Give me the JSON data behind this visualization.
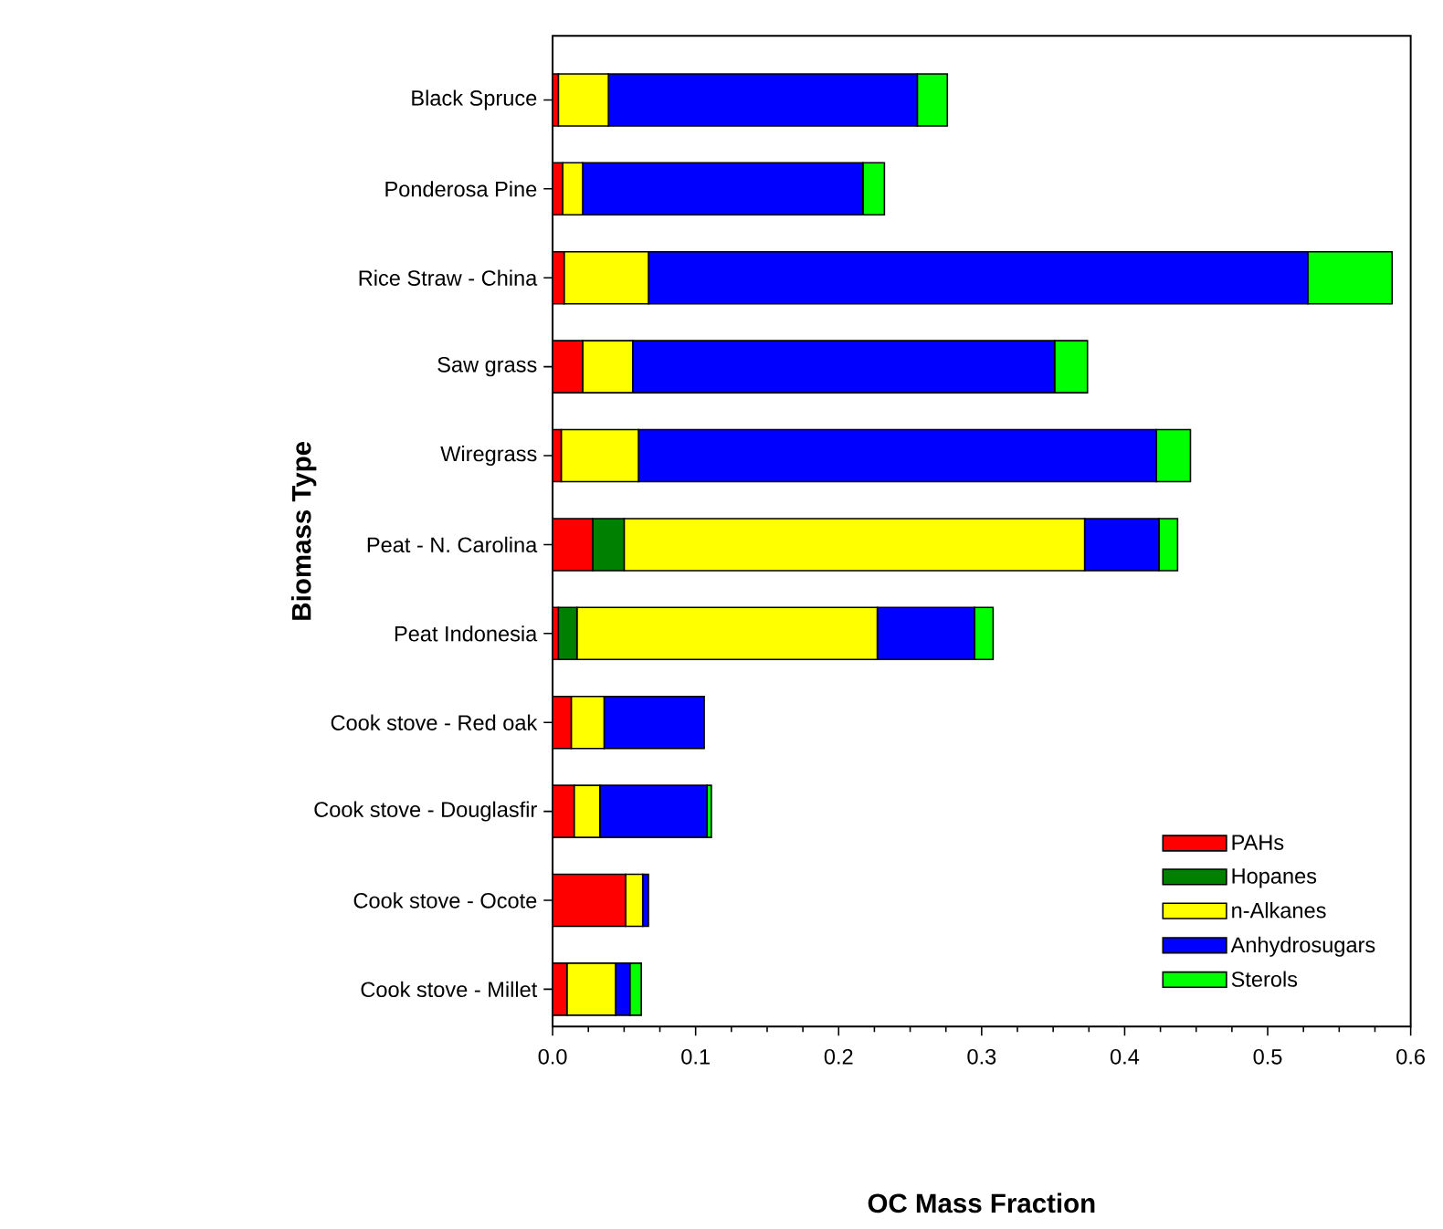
{
  "chart_data": {
    "type": "bar",
    "orientation": "horizontal",
    "stacked": true,
    "xlabel": "OC Mass Fraction",
    "ylabel": "Biomass Type",
    "categories": [
      "Black Spruce",
      "Ponderosa Pine",
      "Rice Straw  - China",
      "Saw grass",
      "Wiregrass",
      "Peat - N. Carolina",
      "Peat Indonesia",
      "Cook stove - Red oak",
      "Cook stove - Douglasfir",
      "Cook stove - Ocote",
      "Cook stove - Millet"
    ],
    "series": [
      {
        "name": "PAHs",
        "color": "#ff0000",
        "values": [
          0.004,
          0.007,
          0.008,
          0.021,
          0.006,
          0.028,
          0.004,
          0.013,
          0.015,
          0.051,
          0.01
        ]
      },
      {
        "name": "Hopanes",
        "color": "#008000",
        "values": [
          0,
          0,
          0,
          0,
          0,
          0.022,
          0.013,
          0,
          0,
          0,
          0
        ]
      },
      {
        "name": "n-Alkanes",
        "color": "#ffff00",
        "values": [
          0.035,
          0.014,
          0.059,
          0.035,
          0.054,
          0.322,
          0.21,
          0.023,
          0.018,
          0.012,
          0.034
        ]
      },
      {
        "name": "Anhydrosugars",
        "color": "#0000ff",
        "values": [
          0.216,
          0.196,
          0.461,
          0.295,
          0.362,
          0.052,
          0.068,
          0.07,
          0.075,
          0.004,
          0.01
        ]
      },
      {
        "name": "Sterols",
        "color": "#00ff00",
        "values": [
          0.021,
          0.015,
          0.059,
          0.023,
          0.024,
          0.013,
          0.013,
          0,
          0.003,
          0,
          0.008
        ]
      }
    ],
    "xlim": [
      0,
      0.6
    ],
    "xticks": [
      {
        "value": 0,
        "label": "0.0"
      },
      {
        "value": 0.1,
        "label": "0.1"
      },
      {
        "value": 0.2,
        "label": "0.2"
      },
      {
        "value": 0.3,
        "label": "0.3"
      },
      {
        "value": 0.4,
        "label": "0.4"
      },
      {
        "value": 0.5,
        "label": "0.5"
      },
      {
        "value": 0.6,
        "label": "0.6"
      }
    ],
    "legend": "bottom right",
    "grid": false
  }
}
